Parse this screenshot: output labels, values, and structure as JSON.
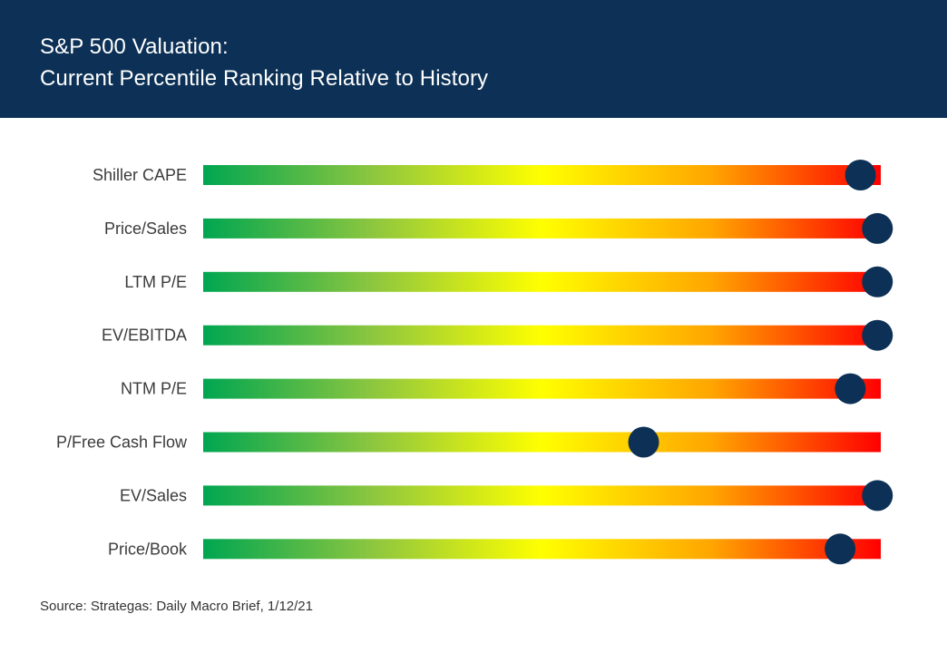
{
  "header": {
    "title_line1": "S&P 500 Valuation:",
    "title_line2": "Current Percentile Ranking Relative to History",
    "background": "#0d3156"
  },
  "chart_data": {
    "type": "bar",
    "title": "S&P 500 Valuation: Current Percentile Ranking Relative to History",
    "categories": [
      "Shiller CAPE",
      "Price/Sales",
      "LTM P/E",
      "EV/EBITDA",
      "NTM P/E",
      "P/Free Cash Flow",
      "EV/Sales",
      "Price/Book"
    ],
    "values": [
      0.97,
      0.995,
      0.995,
      0.995,
      0.955,
      0.65,
      0.995,
      0.94
    ],
    "value_unit": "percentile (0–1)",
    "xlim": [
      0,
      1
    ],
    "gradient_colors": [
      "#00a651",
      "#8dc63f",
      "#ffff00",
      "#ffa500",
      "#ff0000"
    ],
    "marker_color": "#0d3156",
    "grid": false
  },
  "footer": {
    "source": "Source: Strategas: Daily Macro Brief, 1/12/21"
  }
}
